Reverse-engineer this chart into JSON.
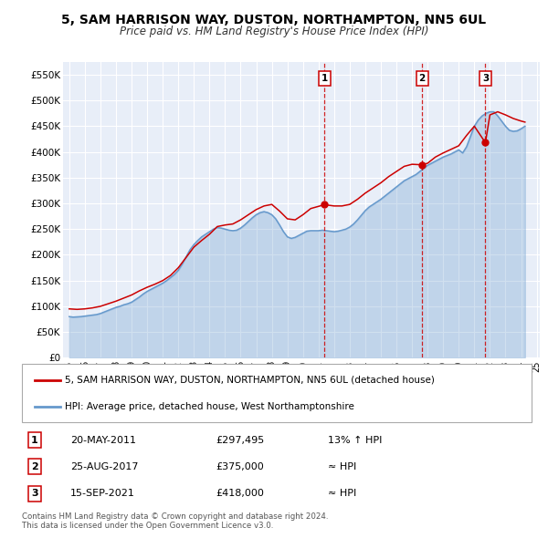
{
  "title": "5, SAM HARRISON WAY, DUSTON, NORTHAMPTON, NN5 6UL",
  "subtitle": "Price paid vs. HM Land Registry's House Price Index (HPI)",
  "title_fontsize": 10,
  "subtitle_fontsize": 8.5,
  "ylim": [
    0,
    575000
  ],
  "yticks": [
    0,
    50000,
    100000,
    150000,
    200000,
    250000,
    300000,
    350000,
    400000,
    450000,
    500000,
    550000
  ],
  "ytick_labels": [
    "£0",
    "£50K",
    "£100K",
    "£150K",
    "£200K",
    "£250K",
    "£300K",
    "£350K",
    "£400K",
    "£450K",
    "£500K",
    "£550K"
  ],
  "red_line_color": "#cc0000",
  "blue_line_color": "#6699cc",
  "plot_bg_color": "#e8eef8",
  "grid_color": "#ffffff",
  "vline_color": "#cc0000",
  "xlim_left": 1994.6,
  "xlim_right": 2025.2,
  "transactions": [
    {
      "num": 1,
      "date": "20-MAY-2011",
      "price": 297495,
      "rel": "13% ↑ HPI",
      "x_year": 2011.38
    },
    {
      "num": 2,
      "date": "25-AUG-2017",
      "price": 375000,
      "rel": "≈ HPI",
      "x_year": 2017.65
    },
    {
      "num": 3,
      "date": "15-SEP-2021",
      "price": 418000,
      "rel": "≈ HPI",
      "x_year": 2021.71
    }
  ],
  "legend_house": "5, SAM HARRISON WAY, DUSTON, NORTHAMPTON, NN5 6UL (detached house)",
  "legend_hpi": "HPI: Average price, detached house, West Northamptonshire",
  "footer": "Contains HM Land Registry data © Crown copyright and database right 2024.\nThis data is licensed under the Open Government Licence v3.0.",
  "hpi_data": {
    "years": [
      1995.0,
      1995.25,
      1995.5,
      1995.75,
      1996.0,
      1996.25,
      1996.5,
      1996.75,
      1997.0,
      1997.25,
      1997.5,
      1997.75,
      1998.0,
      1998.25,
      1998.5,
      1998.75,
      1999.0,
      1999.25,
      1999.5,
      1999.75,
      2000.0,
      2000.25,
      2000.5,
      2000.75,
      2001.0,
      2001.25,
      2001.5,
      2001.75,
      2002.0,
      2002.25,
      2002.5,
      2002.75,
      2003.0,
      2003.25,
      2003.5,
      2003.75,
      2004.0,
      2004.25,
      2004.5,
      2004.75,
      2005.0,
      2005.25,
      2005.5,
      2005.75,
      2006.0,
      2006.25,
      2006.5,
      2006.75,
      2007.0,
      2007.25,
      2007.5,
      2007.75,
      2008.0,
      2008.25,
      2008.5,
      2008.75,
      2009.0,
      2009.25,
      2009.5,
      2009.75,
      2010.0,
      2010.25,
      2010.5,
      2010.75,
      2011.0,
      2011.25,
      2011.5,
      2011.75,
      2012.0,
      2012.25,
      2012.5,
      2012.75,
      2013.0,
      2013.25,
      2013.5,
      2013.75,
      2014.0,
      2014.25,
      2014.5,
      2014.75,
      2015.0,
      2015.25,
      2015.5,
      2015.75,
      2016.0,
      2016.25,
      2016.5,
      2016.75,
      2017.0,
      2017.25,
      2017.5,
      2017.75,
      2018.0,
      2018.25,
      2018.5,
      2018.75,
      2019.0,
      2019.25,
      2019.5,
      2019.75,
      2020.0,
      2020.25,
      2020.5,
      2020.75,
      2021.0,
      2021.25,
      2021.5,
      2021.75,
      2022.0,
      2022.25,
      2022.5,
      2022.75,
      2023.0,
      2023.25,
      2023.5,
      2023.75,
      2024.0,
      2024.25
    ],
    "values": [
      80000,
      79000,
      79500,
      80000,
      81000,
      82000,
      83000,
      84000,
      86000,
      89000,
      92000,
      95000,
      98000,
      100000,
      103000,
      105000,
      108000,
      113000,
      118000,
      124000,
      129000,
      133000,
      137000,
      141000,
      145000,
      150000,
      156000,
      162000,
      170000,
      182000,
      196000,
      210000,
      220000,
      228000,
      235000,
      240000,
      245000,
      250000,
      253000,
      252000,
      250000,
      248000,
      247000,
      248000,
      252000,
      258000,
      265000,
      272000,
      278000,
      282000,
      284000,
      282000,
      278000,
      270000,
      258000,
      245000,
      235000,
      232000,
      234000,
      238000,
      242000,
      246000,
      247000,
      247000,
      247000,
      248000,
      247000,
      246000,
      245000,
      246000,
      248000,
      250000,
      254000,
      260000,
      268000,
      277000,
      286000,
      293000,
      298000,
      303000,
      308000,
      314000,
      320000,
      326000,
      332000,
      338000,
      344000,
      348000,
      352000,
      356000,
      362000,
      368000,
      374000,
      378000,
      382000,
      386000,
      390000,
      393000,
      396000,
      400000,
      404000,
      398000,
      410000,
      430000,
      450000,
      462000,
      470000,
      475000,
      478000,
      478000,
      470000,
      460000,
      450000,
      442000,
      440000,
      441000,
      445000,
      450000
    ]
  },
  "red_data": {
    "years": [
      1995.0,
      1995.5,
      1996.0,
      1996.5,
      1997.0,
      1997.5,
      1998.0,
      1998.5,
      1999.0,
      1999.5,
      2000.0,
      2000.5,
      2001.0,
      2001.5,
      2002.0,
      2002.5,
      2003.0,
      2003.5,
      2004.0,
      2004.5,
      2005.0,
      2005.5,
      2006.0,
      2006.5,
      2007.0,
      2007.5,
      2008.0,
      2008.5,
      2009.0,
      2009.5,
      2010.0,
      2010.5,
      2011.38,
      2012.0,
      2012.5,
      2013.0,
      2013.5,
      2014.0,
      2014.5,
      2015.0,
      2015.5,
      2016.0,
      2016.5,
      2017.0,
      2017.65,
      2018.0,
      2018.5,
      2019.0,
      2019.5,
      2020.0,
      2020.5,
      2021.0,
      2021.71,
      2022.0,
      2022.5,
      2023.0,
      2023.5,
      2024.0,
      2024.25
    ],
    "values": [
      95000,
      94000,
      95000,
      97000,
      100000,
      105000,
      110000,
      116000,
      122000,
      130000,
      137000,
      143000,
      150000,
      160000,
      175000,
      195000,
      215000,
      228000,
      240000,
      255000,
      258000,
      260000,
      268000,
      278000,
      288000,
      295000,
      298000,
      285000,
      270000,
      268000,
      278000,
      290000,
      297495,
      295000,
      295000,
      298000,
      308000,
      320000,
      330000,
      340000,
      352000,
      362000,
      372000,
      376000,
      375000,
      378000,
      390000,
      398000,
      405000,
      412000,
      432000,
      450000,
      418000,
      472000,
      478000,
      472000,
      465000,
      460000,
      458000
    ]
  }
}
